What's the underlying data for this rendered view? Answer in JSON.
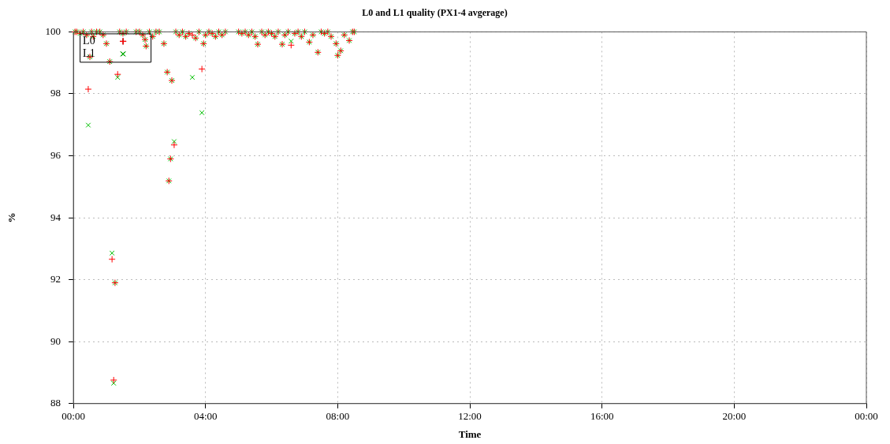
{
  "chart_data": {
    "type": "scatter",
    "title": "L0 and L1 quality (PX1-4 avgerage)",
    "xlabel": "Time",
    "ylabel": "%",
    "x": [
      0.05,
      0.1,
      0.2,
      0.3,
      0.4,
      0.45,
      0.5,
      0.55,
      0.6,
      0.7,
      0.8,
      0.9,
      1.0,
      1.1,
      1.17,
      1.22,
      1.26,
      1.34,
      1.4,
      1.5,
      1.6,
      1.9,
      2.0,
      2.1,
      2.17,
      2.2,
      2.3,
      2.4,
      2.5,
      2.6,
      2.74,
      2.84,
      2.89,
      2.94,
      2.98,
      3.05,
      3.1,
      3.2,
      3.3,
      3.4,
      3.5,
      3.6,
      3.7,
      3.8,
      3.89,
      3.94,
      4.0,
      4.1,
      4.2,
      4.3,
      4.4,
      4.5,
      4.6,
      5.0,
      5.1,
      5.2,
      5.3,
      5.4,
      5.5,
      5.58,
      5.7,
      5.8,
      5.9,
      6.0,
      6.1,
      6.2,
      6.32,
      6.4,
      6.5,
      6.59,
      6.7,
      6.8,
      6.9,
      7.0,
      7.14,
      7.25,
      7.4,
      7.5,
      7.6,
      7.7,
      7.8,
      7.95,
      8.0,
      8.09,
      8.2,
      8.35,
      8.45,
      8.5
    ],
    "series": [
      {
        "name": "L0",
        "color": "#ff0000",
        "marker": "cross",
        "values": [
          100,
          100,
          99.95,
          100,
          99.9,
          98.15,
          99.19,
          100,
          99.85,
          100,
          100,
          99.9,
          99.62,
          99.04,
          92.66,
          88.76,
          91.9,
          98.63,
          100,
          99.95,
          100,
          100,
          100,
          99.9,
          99.75,
          99.54,
          100,
          99.85,
          100,
          100,
          99.62,
          98.7,
          95.19,
          95.9,
          98.43,
          96.35,
          100,
          99.9,
          100,
          99.85,
          99.95,
          99.9,
          99.8,
          100,
          98.8,
          99.62,
          99.9,
          100,
          99.95,
          99.85,
          100,
          99.9,
          100,
          100,
          99.95,
          100,
          99.9,
          100,
          99.85,
          99.6,
          100,
          99.9,
          100,
          99.95,
          99.85,
          100,
          99.6,
          99.9,
          100,
          99.57,
          99.95,
          100,
          99.85,
          100,
          99.67,
          99.9,
          99.34,
          100,
          99.95,
          100,
          99.85,
          99.62,
          99.24,
          99.39,
          99.9,
          99.72,
          100,
          100
        ]
      },
      {
        "name": "L1",
        "color": "#00c000",
        "marker": "x",
        "values": [
          100,
          100,
          99.95,
          100,
          99.9,
          96.99,
          99.19,
          100,
          99.85,
          100,
          100,
          99.9,
          99.62,
          99.04,
          92.86,
          88.66,
          91.9,
          98.53,
          100,
          99.95,
          100,
          100,
          100,
          99.9,
          99.75,
          99.54,
          100,
          99.85,
          100,
          100,
          99.62,
          98.7,
          95.19,
          95.9,
          98.43,
          96.46,
          100,
          99.9,
          100,
          99.85,
          99.95,
          98.53,
          99.8,
          100,
          97.39,
          99.62,
          99.9,
          100,
          99.95,
          99.85,
          100,
          99.9,
          100,
          100,
          99.95,
          100,
          99.9,
          100,
          99.85,
          99.6,
          100,
          99.9,
          100,
          99.95,
          99.85,
          100,
          99.6,
          99.9,
          100,
          99.7,
          99.95,
          100,
          99.85,
          100,
          99.67,
          99.9,
          99.34,
          100,
          99.95,
          100,
          99.85,
          99.62,
          99.24,
          99.39,
          99.9,
          99.72,
          100,
          100
        ]
      }
    ],
    "xlim": [
      0,
      24
    ],
    "xticks": [
      {
        "value": 0,
        "label": "00:00"
      },
      {
        "value": 4,
        "label": "04:00"
      },
      {
        "value": 8,
        "label": "08:00"
      },
      {
        "value": 12,
        "label": "12:00"
      },
      {
        "value": 16,
        "label": "16:00"
      },
      {
        "value": 20,
        "label": "20:00"
      },
      {
        "value": 24,
        "label": "00:00"
      }
    ],
    "ylim": [
      88,
      100
    ],
    "yticks": [
      88,
      90,
      92,
      94,
      96,
      98,
      100
    ],
    "grid": true,
    "legend": "top left"
  }
}
